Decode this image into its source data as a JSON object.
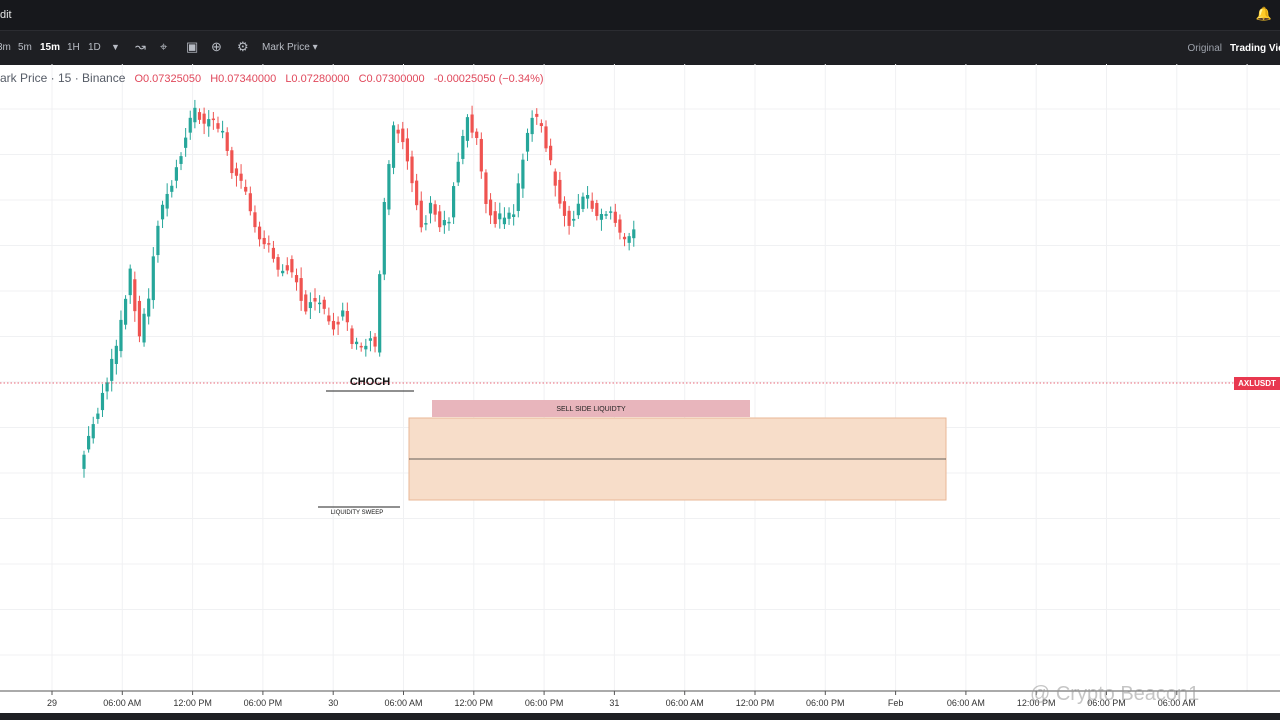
{
  "window": {
    "title": "dit",
    "bell_icon": "bell-icon"
  },
  "toolbar": {
    "intervals": [
      {
        "label": "3m",
        "active": false
      },
      {
        "label": "5m",
        "active": false
      },
      {
        "label": "15m",
        "active": true
      },
      {
        "label": "1H",
        "active": false
      },
      {
        "label": "1D",
        "active": false
      }
    ],
    "icons": [
      "chevron-down-icon",
      "chart-type-icon",
      "indicators-icon",
      "camera-icon",
      "plus-circle-icon",
      "settings-icon"
    ],
    "price_type": "Mark Price",
    "view_original": "Original",
    "view_tradingview": "Trading View"
  },
  "legend": {
    "symbol": "ark Price · 15 · Binance",
    "open": "O0.07325050",
    "high": "H0.07340000",
    "low": "L0.07280000",
    "close": "C0.07300000",
    "change": "-0.00025050 (−0.34%)"
  },
  "price_tag": "AXLUSDT",
  "watermark": "@ Crypto Beacon1",
  "colors": {
    "up": "#26a69a",
    "down": "#ef5350",
    "zone_orange": "#f7ddc9",
    "zone_red": "#e8b5bc"
  },
  "chart_data": {
    "type": "candlestick",
    "interval": "15m",
    "x_ticks": [
      "29",
      "06:00 AM",
      "12:00 PM",
      "06:00 PM",
      "30",
      "06:00 AM",
      "12:00 PM",
      "06:00 PM",
      "31",
      "06:00 AM",
      "12:00 PM",
      "06:00 PM",
      "Feb",
      "06:00 AM",
      "12:00 PM",
      "06:00 PM",
      "06:00 AM"
    ],
    "last_price_label": "AXLUSDT",
    "annotations": [
      {
        "text": "CHOCH",
        "kind": "level-line"
      },
      {
        "text": "LIQUIDITY SWEEP",
        "kind": "level-line"
      },
      {
        "text": "SELL SIDE LIQUIDTY",
        "kind": "zone"
      },
      {
        "text": "",
        "kind": "zone"
      }
    ],
    "price_path": [
      [
        0,
        640
      ],
      [
        4,
        620
      ],
      [
        8,
        600
      ],
      [
        11,
        575
      ],
      [
        13,
        596
      ],
      [
        15,
        583
      ],
      [
        17,
        557
      ],
      [
        19,
        549
      ],
      [
        21,
        540
      ],
      [
        23,
        528
      ],
      [
        25,
        520
      ],
      [
        27,
        526
      ],
      [
        29,
        524
      ],
      [
        31,
        528
      ],
      [
        33,
        540
      ],
      [
        35,
        545
      ],
      [
        37,
        553
      ],
      [
        39,
        562
      ],
      [
        41,
        567
      ],
      [
        43,
        574
      ],
      [
        45,
        572
      ],
      [
        47,
        578
      ],
      [
        49,
        586
      ],
      [
        51,
        583
      ],
      [
        53,
        588
      ],
      [
        55,
        592
      ],
      [
        57,
        589
      ],
      [
        59,
        597
      ],
      [
        61,
        601
      ],
      [
        63,
        597
      ],
      [
        64,
        600
      ],
      [
        66,
        553
      ],
      [
        68,
        527
      ],
      [
        70,
        530
      ],
      [
        72,
        543
      ],
      [
        74,
        560
      ],
      [
        76,
        553
      ],
      [
        78,
        559
      ],
      [
        80,
        556
      ],
      [
        82,
        536
      ],
      [
        84,
        522
      ],
      [
        86,
        530
      ],
      [
        88,
        550
      ],
      [
        90,
        557
      ],
      [
        92,
        556
      ],
      [
        94,
        554
      ],
      [
        96,
        536
      ],
      [
        98,
        521
      ],
      [
        100,
        527
      ],
      [
        102,
        539
      ],
      [
        104,
        552
      ],
      [
        106,
        558
      ],
      [
        108,
        552
      ],
      [
        110,
        549
      ],
      [
        112,
        557
      ],
      [
        114,
        555
      ],
      [
        116,
        557
      ],
      [
        118,
        565
      ],
      [
        120,
        562
      ]
    ]
  }
}
